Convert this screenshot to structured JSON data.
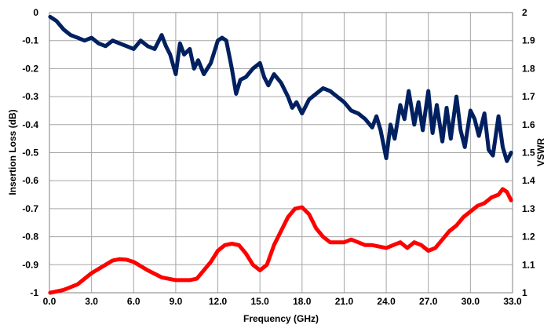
{
  "chart_data": {
    "type": "line",
    "title": "",
    "xlabel": "Frequency (GHz)",
    "ylabel_left": "Insertion Loss (dB)",
    "ylabel_right": "VSWR",
    "xlim": [
      0,
      33
    ],
    "ylim_left": [
      -1,
      0
    ],
    "ylim_right": [
      1,
      2
    ],
    "grid": true,
    "x_ticks": [
      "0.0",
      "3.0",
      "6.0",
      "9.0",
      "12.0",
      "15.0",
      "18.0",
      "21.0",
      "24.0",
      "27.0",
      "30.0",
      "33.0"
    ],
    "y_ticks_left": [
      "0",
      "-0.1",
      "-0.2",
      "-0.3",
      "-0.4",
      "-0.5",
      "-0.6",
      "-0.7",
      "-0.8",
      "-0.9",
      "-1"
    ],
    "y_ticks_right": [
      "2",
      "1.9",
      "1.8",
      "1.7",
      "1.6",
      "1.5",
      "1.4",
      "1.3",
      "1.2",
      "1.1",
      "1"
    ],
    "series": [
      {
        "axis": "left",
        "color": "#002060",
        "x": [
          0.05,
          0.5,
          1.0,
          1.5,
          2.0,
          2.5,
          3.0,
          3.5,
          4.0,
          4.5,
          5.0,
          5.5,
          6.0,
          6.5,
          7.0,
          7.5,
          8.0,
          8.3,
          8.6,
          9.0,
          9.3,
          9.6,
          10.0,
          10.3,
          10.6,
          11.0,
          11.5,
          12.0,
          12.3,
          12.6,
          13.0,
          13.3,
          13.6,
          14.0,
          14.5,
          15.0,
          15.3,
          15.6,
          16.0,
          16.5,
          17.0,
          17.3,
          17.6,
          18.0,
          18.5,
          19.0,
          19.5,
          20.0,
          20.5,
          21.0,
          21.5,
          22.0,
          22.5,
          23.0,
          23.3,
          23.6,
          24.0,
          24.3,
          24.6,
          25.0,
          25.3,
          25.6,
          26.0,
          26.3,
          26.6,
          27.0,
          27.3,
          27.6,
          28.0,
          28.3,
          28.6,
          29.0,
          29.3,
          29.6,
          30.0,
          30.3,
          30.6,
          31.0,
          31.3,
          31.6,
          32.0,
          32.3,
          32.6,
          32.9
        ],
        "values": [
          -0.015,
          -0.03,
          -0.06,
          -0.08,
          -0.09,
          -0.1,
          -0.09,
          -0.11,
          -0.12,
          -0.1,
          -0.11,
          -0.12,
          -0.13,
          -0.1,
          -0.12,
          -0.13,
          -0.08,
          -0.12,
          -0.15,
          -0.22,
          -0.11,
          -0.15,
          -0.13,
          -0.2,
          -0.17,
          -0.22,
          -0.18,
          -0.1,
          -0.09,
          -0.1,
          -0.2,
          -0.29,
          -0.24,
          -0.23,
          -0.2,
          -0.18,
          -0.23,
          -0.26,
          -0.22,
          -0.25,
          -0.3,
          -0.34,
          -0.32,
          -0.36,
          -0.31,
          -0.29,
          -0.27,
          -0.28,
          -0.3,
          -0.32,
          -0.35,
          -0.36,
          -0.38,
          -0.41,
          -0.37,
          -0.42,
          -0.52,
          -0.4,
          -0.45,
          -0.33,
          -0.38,
          -0.28,
          -0.4,
          -0.32,
          -0.42,
          -0.28,
          -0.43,
          -0.33,
          -0.46,
          -0.34,
          -0.45,
          -0.3,
          -0.42,
          -0.48,
          -0.35,
          -0.38,
          -0.44,
          -0.36,
          -0.49,
          -0.51,
          -0.37,
          -0.48,
          -0.53,
          -0.5
        ]
      },
      {
        "axis": "right",
        "color": "#ff0000",
        "x": [
          0.05,
          1.0,
          2.0,
          3.0,
          4.0,
          4.5,
          5.0,
          5.5,
          6.0,
          7.0,
          8.0,
          9.0,
          10.0,
          10.5,
          11.0,
          11.5,
          12.0,
          12.5,
          13.0,
          13.5,
          14.0,
          14.5,
          15.0,
          15.5,
          16.0,
          16.5,
          17.0,
          17.5,
          18.0,
          18.5,
          19.0,
          19.5,
          20.0,
          20.5,
          21.0,
          21.5,
          22.0,
          22.5,
          23.0,
          24.0,
          24.5,
          25.0,
          25.5,
          26.0,
          26.5,
          27.0,
          27.5,
          28.0,
          28.5,
          29.0,
          29.5,
          30.0,
          30.5,
          31.0,
          31.5,
          32.0,
          32.3,
          32.6,
          32.9
        ],
        "values": [
          1.0,
          1.01,
          1.03,
          1.07,
          1.1,
          1.115,
          1.12,
          1.118,
          1.11,
          1.08,
          1.055,
          1.045,
          1.045,
          1.05,
          1.08,
          1.11,
          1.15,
          1.17,
          1.175,
          1.17,
          1.14,
          1.1,
          1.08,
          1.1,
          1.17,
          1.22,
          1.27,
          1.3,
          1.305,
          1.28,
          1.23,
          1.2,
          1.18,
          1.18,
          1.18,
          1.19,
          1.18,
          1.17,
          1.17,
          1.16,
          1.17,
          1.18,
          1.16,
          1.18,
          1.17,
          1.15,
          1.16,
          1.19,
          1.22,
          1.24,
          1.27,
          1.29,
          1.31,
          1.32,
          1.34,
          1.35,
          1.37,
          1.36,
          1.33
        ]
      }
    ]
  }
}
